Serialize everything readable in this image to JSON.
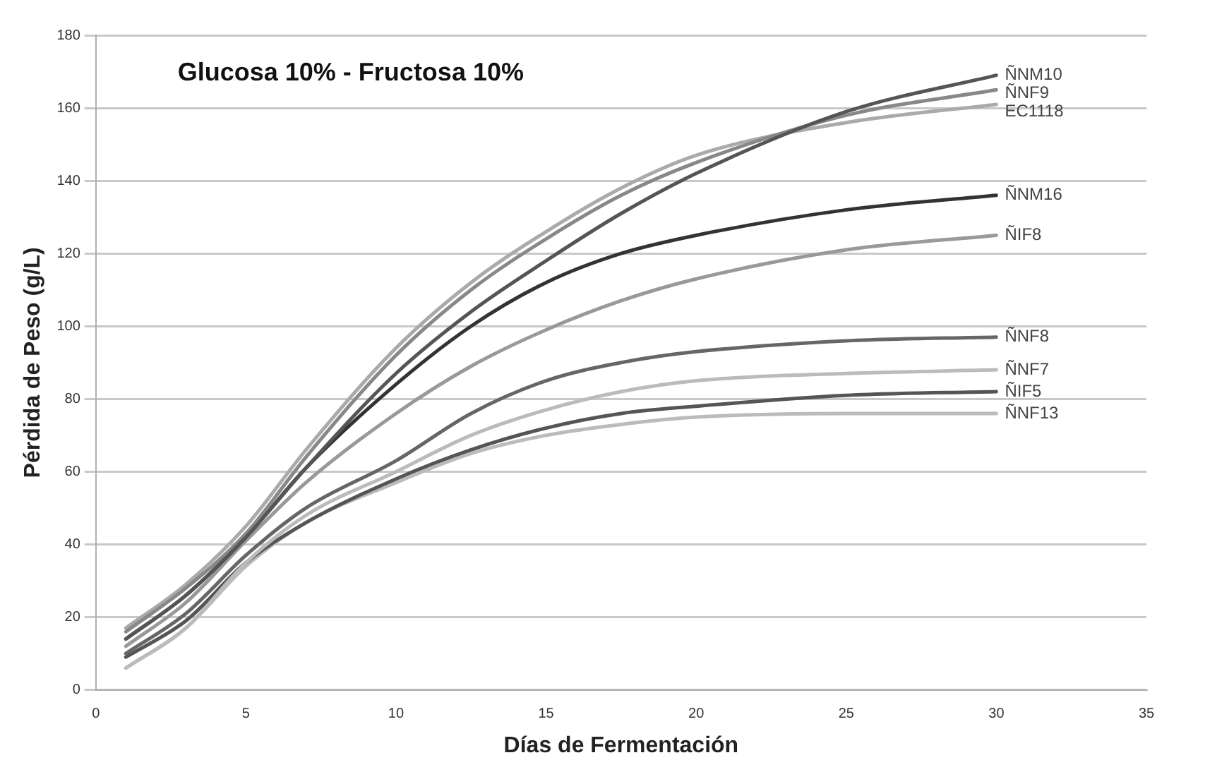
{
  "chart_data": {
    "type": "line",
    "title": "Glucosa 10% - Fructosa 10%",
    "xlabel": "Días de Fermentación",
    "ylabel": "Pérdida de Peso (g/L)",
    "x": [
      1,
      3,
      5,
      7,
      10,
      12.5,
      15,
      17.5,
      20,
      25,
      30
    ],
    "series": [
      {
        "name": "ÑNM10",
        "color": "#555555",
        "values": [
          14,
          26,
          42,
          61,
          87,
          104,
          118,
          131,
          142,
          159,
          169
        ]
      },
      {
        "name": "ÑNF9",
        "color": "#888888",
        "values": [
          16,
          28,
          43,
          64,
          92,
          110,
          124,
          136,
          145,
          158,
          165
        ]
      },
      {
        "name": "EC1118",
        "color": "#aaaaaa",
        "values": [
          17,
          29,
          45,
          66,
          94,
          112,
          126,
          138,
          147,
          156,
          161
        ]
      },
      {
        "name": "ÑNM16",
        "color": "#333333",
        "values": [
          14,
          26,
          42,
          61,
          84,
          100,
          112,
          120,
          125,
          132,
          136
        ]
      },
      {
        "name": "ÑIF8",
        "color": "#999999",
        "values": [
          12,
          24,
          41,
          57,
          76,
          89,
          99,
          107,
          113,
          121,
          125
        ]
      },
      {
        "name": "ÑNF8",
        "color": "#666666",
        "values": [
          10,
          21,
          37,
          50,
          63,
          76,
          85,
          90,
          93,
          96,
          97
        ]
      },
      {
        "name": "ÑNF7",
        "color": "#bbbbbb",
        "values": [
          6,
          17,
          35,
          48,
          60,
          70,
          77,
          82,
          85,
          87,
          88
        ]
      },
      {
        "name": "ÑIF5",
        "color": "#555555",
        "values": [
          9,
          19,
          35,
          46,
          58,
          66,
          72,
          76,
          78,
          81,
          82
        ]
      },
      {
        "name": "ÑNF13",
        "color": "#bbbbbb",
        "values": [
          6,
          17,
          34,
          46,
          57,
          65,
          70,
          73,
          75,
          76,
          76
        ]
      }
    ],
    "xlim": [
      0,
      35
    ],
    "xticks": [
      0,
      5,
      10,
      15,
      20,
      25,
      30,
      35
    ],
    "ylim": [
      0,
      180
    ],
    "yticks": [
      0,
      20,
      40,
      60,
      80,
      100,
      120,
      140,
      160,
      180
    ],
    "grid": "y",
    "legend": false,
    "marker": "none",
    "line_style": "solid"
  }
}
